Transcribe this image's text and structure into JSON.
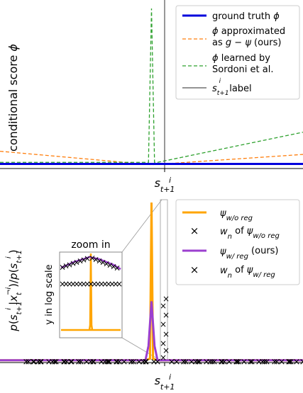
{
  "colors": {
    "ground_truth": "#0000dd",
    "approximated": "#ff7f0e",
    "sordoni": "#2ca02c",
    "label_line": "#555555",
    "wo_reg": "#ffa500",
    "w_reg": "#9b3fcf",
    "wn_wo": "#1f1fc8",
    "wn_w": "#3cb371"
  },
  "chart_data": [
    {
      "type": "line",
      "ylabel": "conditional score ϕ",
      "xlabel": "s_{t+1}^i",
      "grid": false,
      "legend_position": "top-right",
      "series": [
        {
          "name": "ground truth ϕ",
          "style": "solid",
          "x": [
            0,
            0.5,
            1
          ],
          "y": [
            0.02,
            0.02,
            0.02
          ]
        },
        {
          "name": "ϕ approximated as g − ψ (ours)",
          "style": "dashed",
          "x": [
            0,
            0.5,
            1
          ],
          "y": [
            0.1,
            0.015,
            0.08
          ]
        },
        {
          "name": "ϕ learned by Sordoni et al.",
          "style": "dashed",
          "x": [
            0,
            0.49,
            0.5,
            0.51,
            0.52,
            1
          ],
          "y": [
            0.03,
            0.03,
            1.0,
            0.03,
            0.03,
            0.22
          ]
        },
        {
          "name": "s_{t+1}^i label",
          "style": "solid-vertical",
          "x": [
            0.5
          ]
        }
      ]
    },
    {
      "type": "line",
      "ylabel": "p(s_{t+1}^i | x_t^{¬i}) / p(s_{t+1}^i)",
      "xlabel": "s_{t+1}^i",
      "grid": false,
      "legend_position": "top-right",
      "inset": {
        "title": "zoom in",
        "ylabel": "y in log scale"
      },
      "series": [
        {
          "name": "ψ_{w/o reg}",
          "style": "line",
          "x": [
            0,
            0.48,
            0.495,
            0.5,
            0.505,
            0.52,
            1
          ],
          "y": [
            0.01,
            0.01,
            0.02,
            1.0,
            0.02,
            0.01,
            0.01
          ]
        },
        {
          "name": "w_n of ψ_{w/o reg}",
          "style": "marker-x"
        },
        {
          "name": "ψ_{w/ reg} (ours)",
          "style": "line",
          "x": [
            0,
            0.48,
            0.49,
            0.5,
            0.51,
            0.52,
            1
          ],
          "y": [
            0.01,
            0.01,
            0.1,
            0.38,
            0.1,
            0.01,
            0.01
          ]
        },
        {
          "name": "w_n of ψ_{w/ reg}",
          "style": "marker-x"
        }
      ]
    }
  ]
}
